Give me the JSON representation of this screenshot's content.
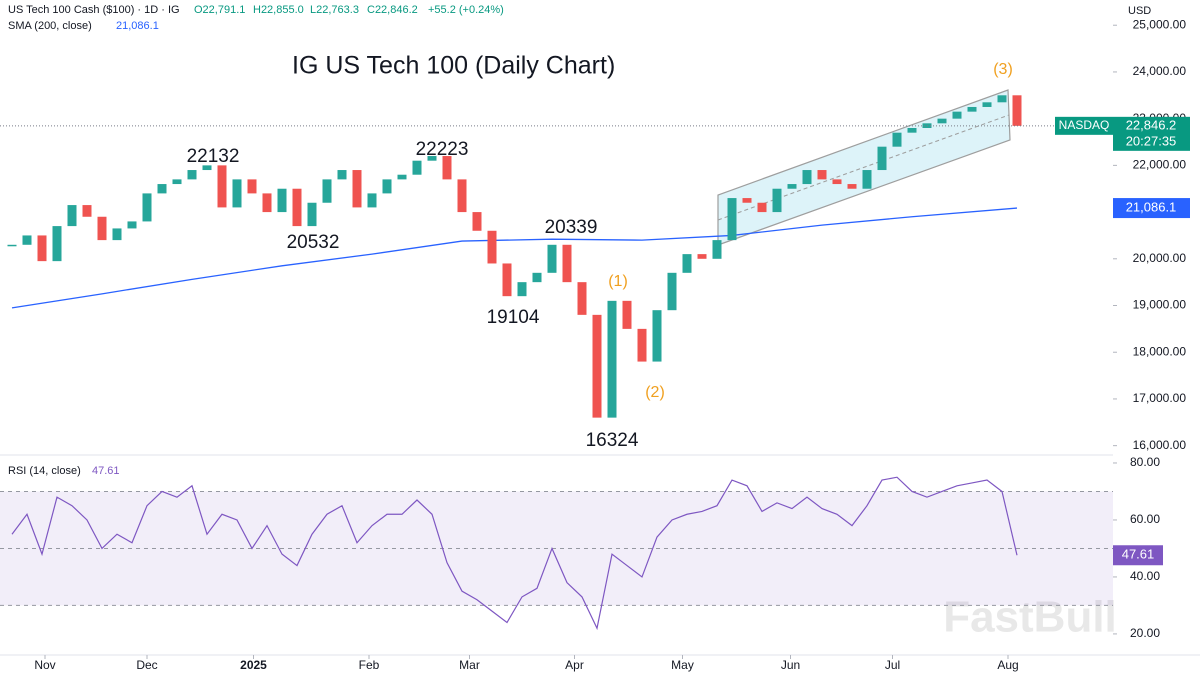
{
  "chart_data": [
    {
      "type": "candlestick",
      "title": "IG US Tech 100 (Daily Chart)",
      "header": {
        "symbol": "US Tech 100 Cash ($100) · 1D · IG",
        "open": "O22,791.1",
        "high": "H22,855.0",
        "low": "L22,763.3",
        "close": "C22,846.2",
        "change": "+55.2 (+0.24%)"
      },
      "currency": "USD",
      "closes": [
        20300,
        20500,
        19950,
        20700,
        21150,
        20900,
        20400,
        20650,
        20800,
        21400,
        21600,
        21700,
        21900,
        22000,
        21100,
        21700,
        21400,
        21000,
        21500,
        20700,
        21200,
        21700,
        21900,
        21100,
        21400,
        21700,
        21800,
        22100,
        22200,
        21700,
        21000,
        20600,
        19900,
        19200,
        19500,
        19700,
        20300,
        19500,
        18800,
        16600,
        19100,
        18500,
        17800,
        18900,
        19700,
        20100,
        20000,
        20400,
        21300,
        21200,
        21000,
        21500,
        21600,
        21900,
        21700,
        21600,
        21500,
        21900,
        22400,
        22700,
        22800,
        22900,
        23000,
        23150,
        23250,
        23350,
        23500,
        22846.2
      ],
      "up_color": "#26a69a",
      "down_color": "#ef5350",
      "indicator": {
        "label": "SMA (200, close)",
        "value_label": "21,086.1",
        "color": "#2962ff",
        "x": [
          0,
          6,
          12,
          18,
          24,
          30,
          36,
          42,
          48,
          54,
          60,
          67
        ],
        "values": [
          18950,
          19250,
          19560,
          19850,
          20100,
          20380,
          20420,
          20400,
          20500,
          20720,
          20900,
          21086.1
        ]
      },
      "ylim": [
        15800,
        25540
      ],
      "yticks": [
        {
          "value": 16000,
          "label": "16,000.00"
        },
        {
          "value": 17000,
          "label": "17,000.00"
        },
        {
          "value": 18000,
          "label": "18,000.00"
        },
        {
          "value": 19000,
          "label": "19,000.00"
        },
        {
          "value": 20000,
          "label": "20,000.00"
        },
        {
          "value": 21000,
          "label": "21,000.00"
        },
        {
          "value": 22000,
          "label": "22,000.00"
        },
        {
          "value": 23000,
          "label": "23,000.00"
        },
        {
          "value": 24000,
          "label": "24,000.00"
        },
        {
          "value": 25000,
          "label": "25,000.00"
        }
      ],
      "xlim": [
        -0.8,
        73.2
      ],
      "xticks": [
        {
          "value": 2.2,
          "label": "Nov"
        },
        {
          "value": 9,
          "label": "Dec"
        },
        {
          "value": 16.1,
          "label": "2025"
        },
        {
          "value": 23.8,
          "label": "Feb"
        },
        {
          "value": 30.5,
          "label": "Mar"
        },
        {
          "value": 37.5,
          "label": "Apr"
        },
        {
          "value": 44.7,
          "label": "May"
        },
        {
          "value": 51.9,
          "label": "Jun"
        },
        {
          "value": 58.7,
          "label": "Jul"
        },
        {
          "value": 66.4,
          "label": "Aug"
        }
      ],
      "annotations": [
        {
          "text": "22132",
          "color": "#131722"
        },
        {
          "text": "20532",
          "color": "#131722"
        },
        {
          "text": "22223",
          "color": "#131722"
        },
        {
          "text": "20339",
          "color": "#131722"
        },
        {
          "text": "19104",
          "color": "#131722"
        },
        {
          "text": "16324",
          "color": "#131722"
        },
        {
          "text": "(1)",
          "color": "#f0a020"
        },
        {
          "text": "(2)",
          "color": "#f0a020"
        },
        {
          "text": "(3)",
          "color": "#f0a020"
        }
      ],
      "badges": {
        "exchange": "NASDAQ",
        "price": "22,846.2",
        "countdown": "20:27:35",
        "indicator": "21,086.1"
      },
      "watermark": "FastBull"
    },
    {
      "type": "line",
      "label": "RSI (14, close)",
      "value_label": "47.61",
      "color": "#7e57c2",
      "values": [
        55,
        62,
        48,
        68,
        65,
        60,
        50,
        55,
        52,
        65,
        70,
        68,
        72,
        55,
        62,
        60,
        50,
        58,
        48,
        44,
        55,
        62,
        65,
        52,
        58,
        62,
        62,
        67,
        62,
        45,
        35,
        32,
        28,
        24,
        33,
        36,
        50,
        38,
        33,
        22,
        48,
        44,
        40,
        54,
        60,
        62,
        63,
        65,
        74,
        72,
        63,
        66,
        64,
        68,
        64,
        62,
        58,
        65,
        74,
        75,
        70,
        68,
        70,
        72,
        73,
        74,
        70,
        47.61
      ],
      "ylim": [
        12.6,
        82.8
      ],
      "yticks": [
        {
          "value": 20,
          "label": "20.00"
        },
        {
          "value": 40,
          "label": "40.00"
        },
        {
          "value": 60,
          "label": "60.00"
        },
        {
          "value": 80,
          "label": "80.00"
        }
      ],
      "levels": [
        30,
        50,
        70
      ],
      "badge": "47.61"
    }
  ]
}
